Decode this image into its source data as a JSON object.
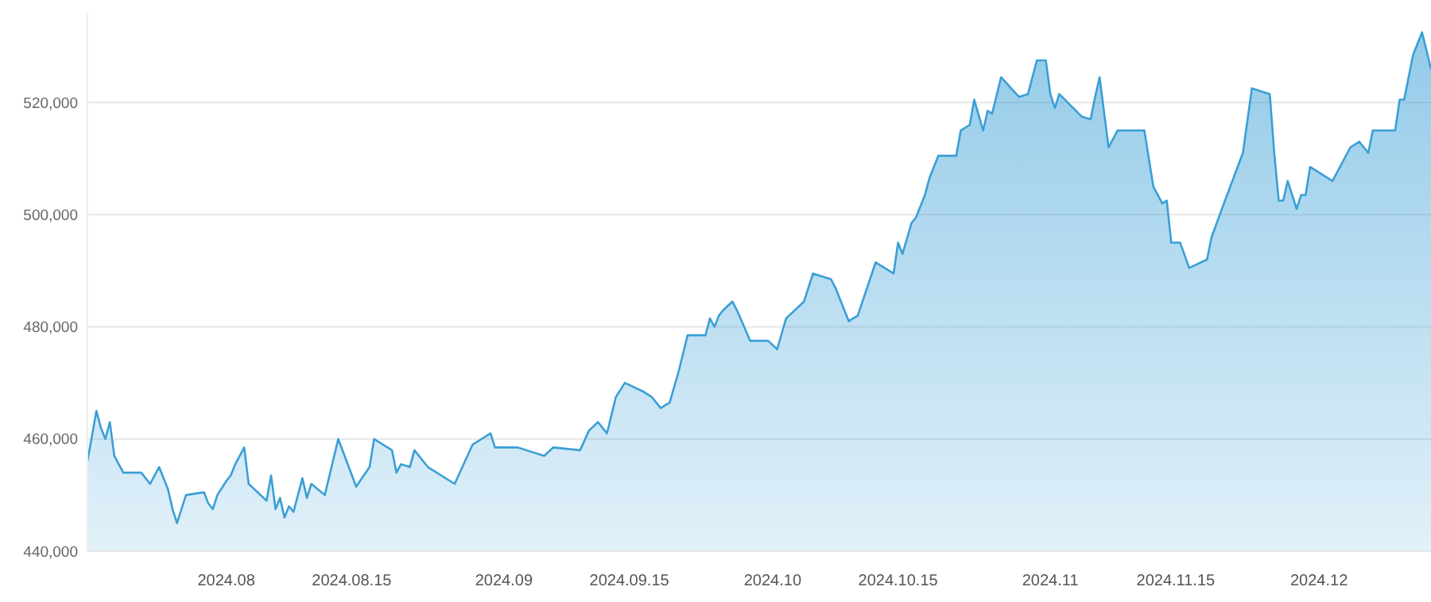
{
  "chart_data": {
    "type": "area",
    "xlim": [
      "2024-07-16T12:00",
      "2024-12-13T12:00"
    ],
    "ylim": [
      440000,
      536000
    ],
    "xticks": [
      {
        "value": "2024-08-01",
        "label": "2024.08"
      },
      {
        "value": "2024-08-15",
        "label": "2024.08.15"
      },
      {
        "value": "2024-09-01",
        "label": "2024.09"
      },
      {
        "value": "2024-09-15",
        "label": "2024.09.15"
      },
      {
        "value": "2024-10-01",
        "label": "2024.10"
      },
      {
        "value": "2024-10-15",
        "label": "2024.10.15"
      },
      {
        "value": "2024-11-01",
        "label": "2024.11"
      },
      {
        "value": "2024-11-15",
        "label": "2024.11.15"
      },
      {
        "value": "2024-12-01",
        "label": "2024.12"
      }
    ],
    "yticks": [
      {
        "value": 440000,
        "label": "440,000"
      },
      {
        "value": 460000,
        "label": "460,000"
      },
      {
        "value": 480000,
        "label": "480,000"
      },
      {
        "value": 500000,
        "label": "500,000"
      },
      {
        "value": 520000,
        "label": "520,000"
      }
    ],
    "grid": "y",
    "marker": "none",
    "line_style": "solid",
    "x": [
      "2024-07-16T12:00",
      "2024-07-17T12:00",
      "2024-07-18",
      "2024-07-18T12:00",
      "2024-07-19",
      "2024-07-19T12:00",
      "2024-07-20",
      "2024-07-20T12:00",
      "2024-07-22T12:00",
      "2024-07-23T12:00",
      "2024-07-24T12:00",
      "2024-07-25T12:00",
      "2024-07-26",
      "2024-07-26T12:00",
      "2024-07-27T12:00",
      "2024-07-29T12:00",
      "2024-07-30",
      "2024-07-30T12:00",
      "2024-07-31",
      "2024-08-01",
      "2024-08-01T12:00",
      "2024-08-02",
      "2024-08-03",
      "2024-08-03T12:00",
      "2024-08-05T12:00",
      "2024-08-06",
      "2024-08-06T12:00",
      "2024-08-07",
      "2024-08-07T12:00",
      "2024-08-08",
      "2024-08-08T12:00",
      "2024-08-09T12:00",
      "2024-08-10",
      "2024-08-10T12:00",
      "2024-08-12",
      "2024-08-13T12:00",
      "2024-08-15T12:00",
      "2024-08-17",
      "2024-08-17T12:00",
      "2024-08-19T12:00",
      "2024-08-20",
      "2024-08-20T12:00",
      "2024-08-21T12:00",
      "2024-08-22",
      "2024-08-23T12:00",
      "2024-08-26T12:00",
      "2024-08-28T12:00",
      "2024-08-29T12:00",
      "2024-08-30T12:00",
      "2024-08-31",
      "2024-09-02T12:00",
      "2024-09-03T12:00",
      "2024-09-05T12:00",
      "2024-09-06T12:00",
      "2024-09-09T12:00",
      "2024-09-10T12:00",
      "2024-09-11T12:00",
      "2024-09-12T12:00",
      "2024-09-13T12:00",
      "2024-09-14T12:00",
      "2024-09-16T12:00",
      "2024-09-17T12:00",
      "2024-09-18T12:00",
      "2024-09-19T12:00",
      "2024-09-20T12:00",
      "2024-09-21T12:00",
      "2024-09-23T12:00",
      "2024-09-24",
      "2024-09-24T12:00",
      "2024-09-25",
      "2024-09-25T12:00",
      "2024-09-26T12:00",
      "2024-09-27",
      "2024-09-28T12:00",
      "2024-09-30T12:00",
      "2024-10-01T12:00",
      "2024-10-02T12:00",
      "2024-10-04T12:00",
      "2024-10-05T12:00",
      "2024-10-07T12:00",
      "2024-10-08",
      "2024-10-09T12:00",
      "2024-10-10T12:00",
      "2024-10-12T12:00",
      "2024-10-14T12:00",
      "2024-10-15",
      "2024-10-15T12:00",
      "2024-10-16T12:00",
      "2024-10-17",
      "2024-10-18",
      "2024-10-18T12:00",
      "2024-10-19T12:00",
      "2024-10-21T12:00",
      "2024-10-22",
      "2024-10-23",
      "2024-10-23T12:00",
      "2024-10-24T12:00",
      "2024-10-25",
      "2024-10-25T12:00",
      "2024-10-26T12:00",
      "2024-10-28T12:00",
      "2024-10-29T12:00",
      "2024-10-30T12:00",
      "2024-10-31T12:00",
      "2024-11-01",
      "2024-11-01T12:00",
      "2024-11-02",
      "2024-11-04T12:00",
      "2024-11-05T12:00",
      "2024-11-06",
      "2024-11-06T12:00",
      "2024-11-07T12:00",
      "2024-11-08T12:00",
      "2024-11-11T12:00",
      "2024-11-12T12:00",
      "2024-11-13T12:00",
      "2024-11-14",
      "2024-11-14T12:00",
      "2024-11-15T12:00",
      "2024-11-16T12:00",
      "2024-11-18T12:00",
      "2024-11-19",
      "2024-11-20T12:00",
      "2024-11-22T12:00",
      "2024-11-23T12:00",
      "2024-11-25T12:00",
      "2024-11-26",
      "2024-11-26T12:00",
      "2024-11-27",
      "2024-11-27T12:00",
      "2024-11-28T12:00",
      "2024-11-29",
      "2024-11-29T12:00",
      "2024-11-30",
      "2024-12-02T12:00",
      "2024-12-04T12:00",
      "2024-12-05T12:00",
      "2024-12-06T12:00",
      "2024-12-07",
      "2024-12-09T12:00",
      "2024-12-10",
      "2024-12-10T12:00",
      "2024-12-11T12:00",
      "2024-12-12T12:00",
      "2024-12-13T12:00"
    ],
    "series": [
      {
        "color": "#3a9fd6",
        "values": [
          456000,
          465000,
          462000,
          460000,
          463000,
          457000,
          455500,
          454000,
          454000,
          452000,
          455000,
          451000,
          447500,
          445000,
          450000,
          450500,
          448500,
          447500,
          450000,
          452500,
          453500,
          455500,
          458500,
          452000,
          449000,
          453500,
          447500,
          449500,
          446000,
          448000,
          447000,
          453000,
          449500,
          452000,
          450000,
          460000,
          451500,
          455000,
          460000,
          458000,
          454000,
          455500,
          455000,
          458000,
          455000,
          452000,
          459000,
          460000,
          461000,
          458500,
          458500,
          458000,
          457000,
          458500,
          458000,
          461500,
          463000,
          461000,
          467500,
          470000,
          468500,
          467500,
          465500,
          466500,
          472000,
          478500,
          478500,
          481500,
          480000,
          482000,
          483000,
          484500,
          483000,
          477500,
          477500,
          476000,
          481500,
          484500,
          489500,
          488500,
          487000,
          481000,
          482000,
          491500,
          489500,
          495000,
          493000,
          498500,
          499500,
          503500,
          506500,
          510500,
          510500,
          515000,
          516000,
          520500,
          515000,
          518500,
          518000,
          524500,
          521000,
          521500,
          527500,
          527500,
          521500,
          519000,
          521500,
          517500,
          517000,
          521000,
          524500,
          512000,
          515000,
          515000,
          505000,
          502000,
          502500,
          495000,
          495000,
          490500,
          492000,
          496000,
          502500,
          511000,
          522500,
          521500,
          511000,
          502500,
          502500,
          506000,
          501000,
          503500,
          503500,
          508500,
          506000,
          512000,
          513000,
          511000,
          515000,
          515000,
          520500,
          520500,
          528500,
          532500,
          526000
        ]
      }
    ]
  }
}
